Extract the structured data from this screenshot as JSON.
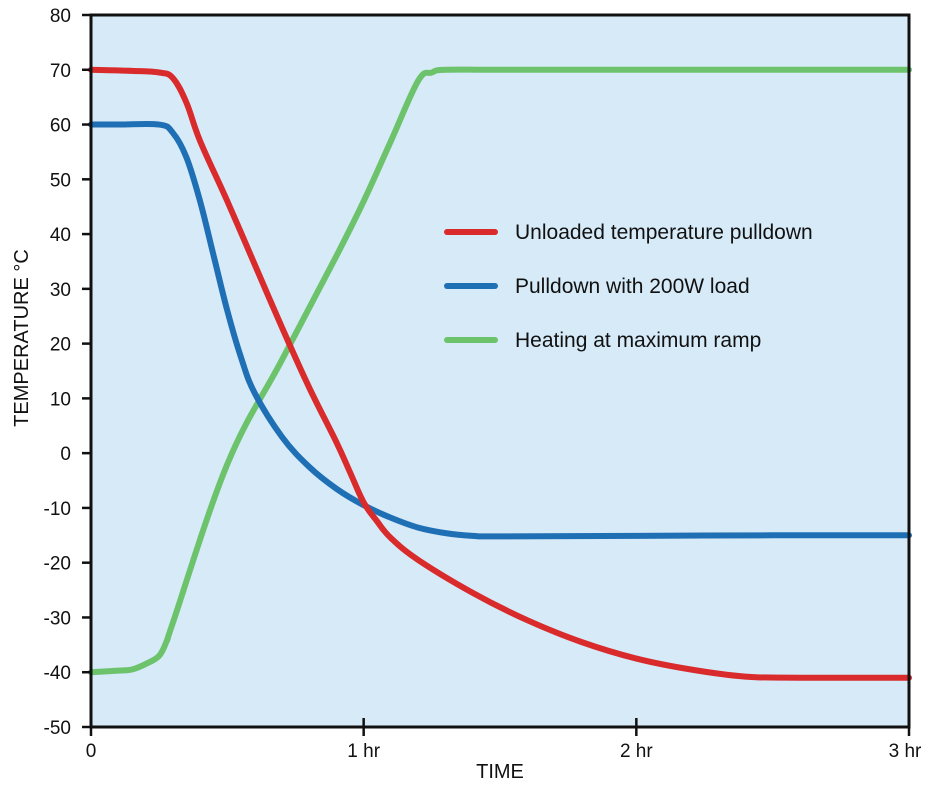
{
  "chart_data": {
    "type": "line",
    "title": "",
    "xlabel": "TIME",
    "ylabel": "TEMPERATURE °C",
    "xlim": [
      0,
      3
    ],
    "ylim": [
      -50,
      80
    ],
    "x_ticks": [
      {
        "value": 0,
        "label": "0"
      },
      {
        "value": 1,
        "label": "1 hr"
      },
      {
        "value": 2,
        "label": "2 hr"
      },
      {
        "value": 3,
        "label": "3 hr"
      }
    ],
    "y_ticks": [
      80,
      70,
      60,
      50,
      40,
      30,
      20,
      10,
      0,
      -10,
      -20,
      -30,
      -40,
      -50
    ],
    "grid": false,
    "background": "#d6eaf8",
    "legend_position": "right, middle-upper inside plot",
    "series": [
      {
        "name": "Unloaded temperature pulldown",
        "color": "#d92b2b",
        "points": [
          [
            0,
            70
          ],
          [
            0.15,
            69.8
          ],
          [
            0.25,
            69.5
          ],
          [
            0.3,
            68.5
          ],
          [
            0.35,
            64
          ],
          [
            0.4,
            57
          ],
          [
            0.5,
            46
          ],
          [
            0.6,
            34.5
          ],
          [
            0.7,
            23
          ],
          [
            0.8,
            12
          ],
          [
            0.9,
            2
          ],
          [
            0.95,
            -3.5
          ],
          [
            1.0,
            -9
          ],
          [
            1.05,
            -12.5
          ],
          [
            1.1,
            -15.5
          ],
          [
            1.2,
            -19.5
          ],
          [
            1.4,
            -25.5
          ],
          [
            1.6,
            -30.5
          ],
          [
            1.8,
            -34.5
          ],
          [
            2.0,
            -37.5
          ],
          [
            2.2,
            -39.5
          ],
          [
            2.4,
            -40.8
          ],
          [
            2.6,
            -41
          ],
          [
            3.0,
            -41
          ]
        ]
      },
      {
        "name": "Pulldown with 200W load",
        "color": "#1f6fb5",
        "points": [
          [
            0,
            60
          ],
          [
            0.1,
            60
          ],
          [
            0.25,
            60
          ],
          [
            0.3,
            58.5
          ],
          [
            0.35,
            54
          ],
          [
            0.4,
            46
          ],
          [
            0.45,
            36
          ],
          [
            0.5,
            26
          ],
          [
            0.55,
            17.5
          ],
          [
            0.6,
            11
          ],
          [
            0.7,
            3
          ],
          [
            0.8,
            -2.5
          ],
          [
            0.9,
            -6.5
          ],
          [
            1.0,
            -9.5
          ],
          [
            1.1,
            -11.8
          ],
          [
            1.2,
            -13.6
          ],
          [
            1.3,
            -14.6
          ],
          [
            1.4,
            -15.1
          ],
          [
            1.5,
            -15.2
          ],
          [
            2.0,
            -15.1
          ],
          [
            2.5,
            -15
          ],
          [
            3.0,
            -15
          ]
        ]
      },
      {
        "name": "Heating at maximum ramp",
        "color": "#6cc36b",
        "points": [
          [
            0,
            -40
          ],
          [
            0.1,
            -39.7
          ],
          [
            0.15,
            -39.5
          ],
          [
            0.2,
            -38.5
          ],
          [
            0.25,
            -37
          ],
          [
            0.28,
            -34
          ],
          [
            0.3,
            -31
          ],
          [
            0.5,
            -2
          ],
          [
            0.7,
            17
          ],
          [
            0.9,
            36
          ],
          [
            1.0,
            46
          ],
          [
            1.1,
            57
          ],
          [
            1.2,
            68
          ],
          [
            1.25,
            69.5
          ],
          [
            1.3,
            70
          ],
          [
            1.5,
            70
          ],
          [
            2.0,
            70
          ],
          [
            3.0,
            70
          ]
        ]
      }
    ]
  }
}
